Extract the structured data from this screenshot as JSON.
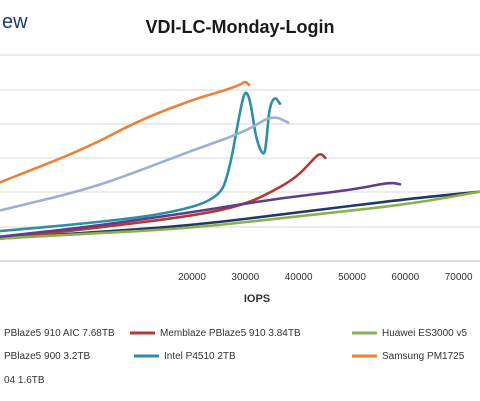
{
  "brand_fragment": "ew",
  "chart_data": {
    "type": "line",
    "title": "VDI-LC-Monday-Login",
    "xlabel": "IOPS",
    "ylabel": "",
    "xlim": [
      -16000,
      74000
    ],
    "ylim": [
      0,
      11
    ],
    "x_ticks": [
      "20000",
      "30000",
      "40000",
      "50000",
      "60000",
      "70000"
    ],
    "x_tick_values": [
      20000,
      30000,
      40000,
      50000,
      60000,
      70000
    ],
    "grid": "horizontal",
    "legend_position": "bottom",
    "series": [
      {
        "name": "PBlaze5 910 AIC 7.68TB",
        "color": "#1f3864",
        "points": [
          [
            -16000,
            1.2
          ],
          [
            0,
            1.5
          ],
          [
            20000,
            1.9
          ],
          [
            40000,
            2.6
          ],
          [
            60000,
            3.3
          ],
          [
            74000,
            3.7
          ]
        ]
      },
      {
        "name": "Memblaze PBlaze5 910 3.84TB",
        "color": "#b23b35",
        "points": [
          [
            -16000,
            1.2
          ],
          [
            0,
            1.7
          ],
          [
            20000,
            2.4
          ],
          [
            30000,
            3.0
          ],
          [
            37000,
            4.0
          ],
          [
            40000,
            4.6
          ],
          [
            42000,
            5.2
          ],
          [
            44000,
            5.8
          ],
          [
            45000,
            5.5
          ]
        ]
      },
      {
        "name": "Huawei ES3000 v5",
        "color": "#8db04e",
        "points": [
          [
            -16000,
            1.2
          ],
          [
            0,
            1.45
          ],
          [
            20000,
            1.75
          ],
          [
            40000,
            2.4
          ],
          [
            60000,
            3.0
          ],
          [
            74000,
            3.7
          ]
        ]
      },
      {
        "name": "PBlaze5 900 3.2TB",
        "color": "#5b3f8c",
        "points": [
          [
            -16000,
            1.3
          ],
          [
            0,
            1.8
          ],
          [
            20000,
            2.6
          ],
          [
            35000,
            3.3
          ],
          [
            50000,
            3.8
          ],
          [
            57000,
            4.2
          ],
          [
            59000,
            4.1
          ]
        ]
      },
      {
        "name": "Intel P4510 2TB",
        "color": "#2e8fa3",
        "points": [
          [
            -16000,
            1.6
          ],
          [
            0,
            2.0
          ],
          [
            15000,
            2.5
          ],
          [
            25000,
            3.3
          ],
          [
            27000,
            4.8
          ],
          [
            29000,
            8.0
          ],
          [
            30000,
            9.2
          ],
          [
            31000,
            8.5
          ],
          [
            32000,
            6.5
          ],
          [
            33500,
            5.5
          ],
          [
            34000,
            6.5
          ],
          [
            34500,
            8.2
          ],
          [
            35500,
            8.8
          ],
          [
            36500,
            8.4
          ]
        ]
      },
      {
        "name": "Samsung PM1725a",
        "color": "#e8833a",
        "points": [
          [
            -16000,
            4.2
          ],
          [
            0,
            6.0
          ],
          [
            10000,
            7.5
          ],
          [
            20000,
            8.6
          ],
          [
            26000,
            9.1
          ],
          [
            29000,
            9.4
          ],
          [
            30000,
            9.6
          ],
          [
            30700,
            9.4
          ]
        ]
      },
      {
        "name": "…04 1.6TB",
        "color": "#9db0d3",
        "points": [
          [
            -16000,
            2.7
          ],
          [
            0,
            3.8
          ],
          [
            10000,
            4.8
          ],
          [
            20000,
            5.9
          ],
          [
            30000,
            6.9
          ],
          [
            35000,
            7.8
          ],
          [
            38000,
            7.4
          ]
        ]
      }
    ],
    "legend_labels": [
      "PBlaze5 910 AIC 7.68TB",
      "Memblaze PBlaze5 910 3.84TB",
      "Huawei ES3000 v5",
      "PBlaze5 900 3.2TB",
      "Intel P4510 2TB",
      "Samsung PM1725",
      "04 1.6TB"
    ]
  }
}
